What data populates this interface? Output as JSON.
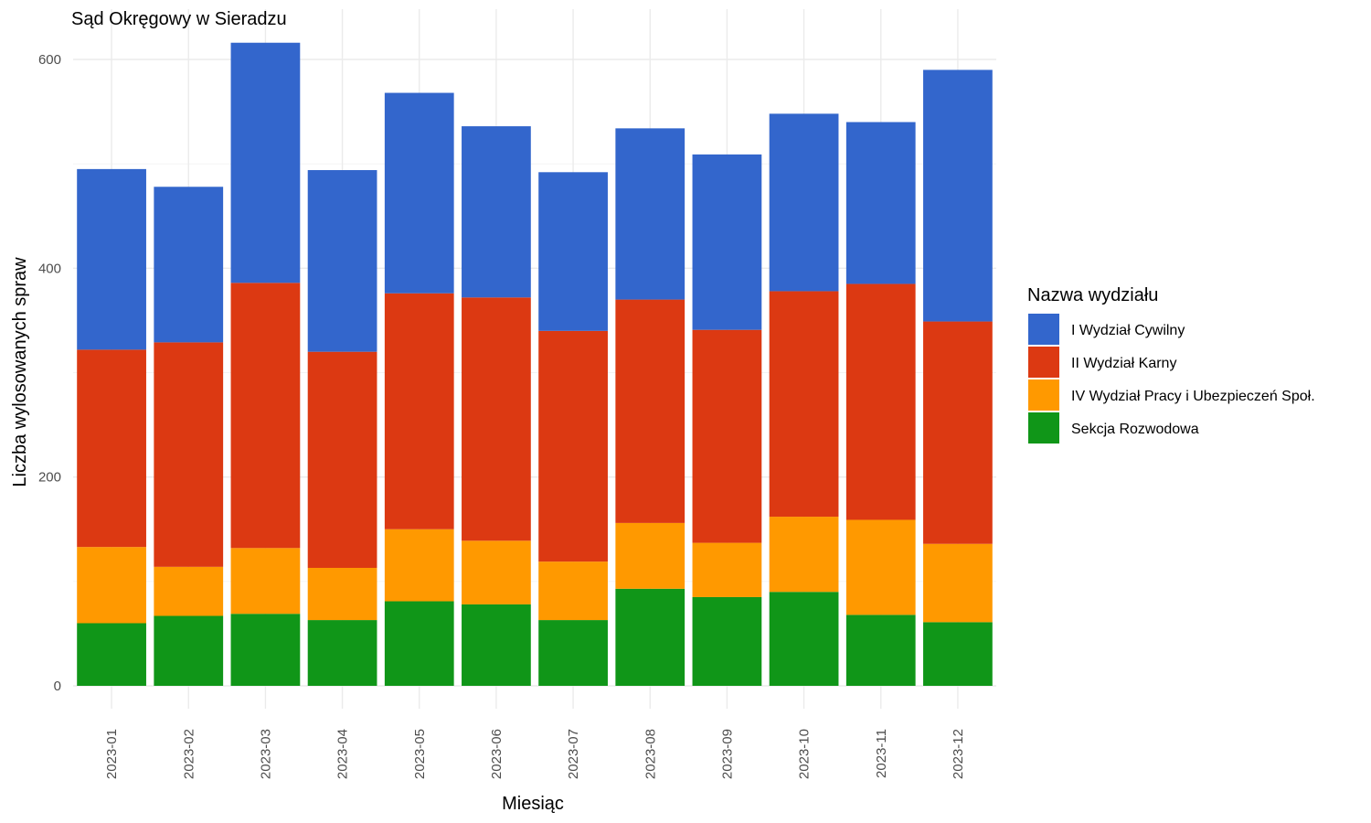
{
  "chart_data": {
    "type": "bar",
    "stacked": true,
    "title": "Sąd Okręgowy w Sieradzu",
    "xlabel": "Miesiąc",
    "ylabel": "Liczba wylosowanych spraw",
    "ylim": [
      0,
      625
    ],
    "yticks": [
      0,
      200,
      400,
      600
    ],
    "grid": true,
    "legend": {
      "title": "Nazwa wydziału",
      "position": "right"
    },
    "categories": [
      "2023-01",
      "2023-02",
      "2023-03",
      "2023-04",
      "2023-05",
      "2023-06",
      "2023-07",
      "2023-08",
      "2023-09",
      "2023-10",
      "2023-11",
      "2023-12"
    ],
    "series": [
      {
        "name": "I Wydział Cywilny",
        "color": "#3366cc",
        "values": [
          173,
          149,
          230,
          174,
          192,
          164,
          152,
          164,
          168,
          170,
          155,
          241
        ]
      },
      {
        "name": "II Wydział Karny",
        "color": "#dc3912",
        "values": [
          189,
          215,
          254,
          207,
          226,
          233,
          221,
          214,
          204,
          216,
          226,
          213
        ]
      },
      {
        "name": "IV Wydział Pracy i Ubezpieczeń Społ.",
        "color": "#ff9900",
        "values": [
          73,
          47,
          63,
          50,
          69,
          61,
          56,
          63,
          52,
          72,
          91,
          75
        ]
      },
      {
        "name": "Sekcja Rozwodowa",
        "color": "#109618",
        "values": [
          60,
          67,
          69,
          63,
          81,
          78,
          63,
          93,
          85,
          90,
          68,
          61
        ]
      }
    ]
  }
}
